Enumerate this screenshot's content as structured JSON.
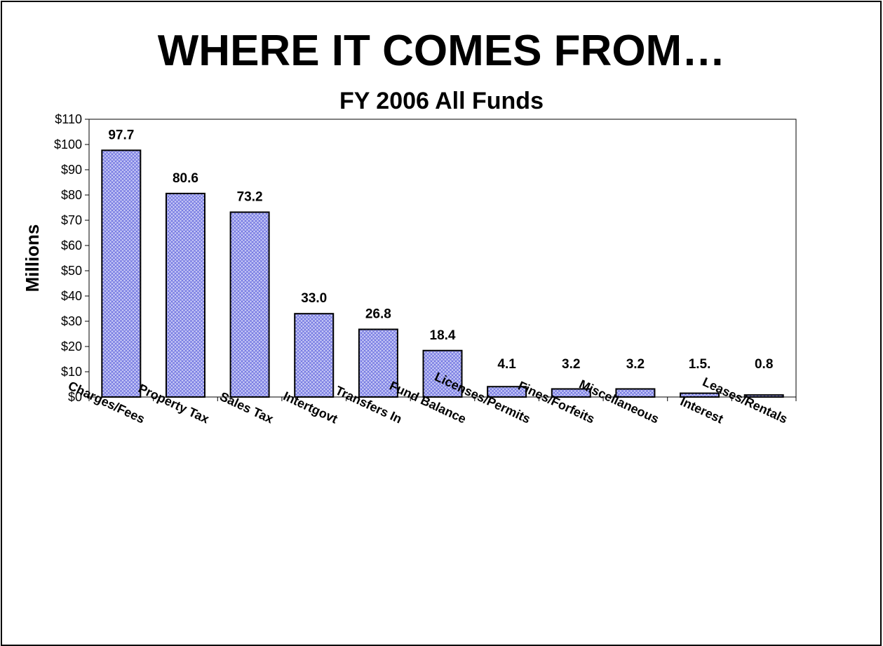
{
  "slide": {
    "title": "WHERE IT COMES FROM…",
    "subtitle": "FY 2006 All Funds"
  },
  "chart_data": {
    "type": "bar",
    "title": "",
    "xlabel": "",
    "ylabel": "Millions",
    "ylim": [
      0,
      110
    ],
    "y_ticks": [
      "$0",
      "$10",
      "$20",
      "$30",
      "$40",
      "$50",
      "$60",
      "$70",
      "$80",
      "$90",
      "$100",
      "$110"
    ],
    "categories": [
      "Charges/Fees",
      "Property Tax",
      "Sales Tax",
      "Intertgovt",
      "Transfers In",
      "Fund Balance",
      "Licenses/Permits",
      "Fines/Forfeits",
      "Miscellaneous",
      "Interest",
      "Leases/Rentals"
    ],
    "values": [
      97.7,
      80.6,
      73.2,
      33.0,
      26.8,
      18.4,
      4.1,
      3.2,
      3.2,
      1.5,
      0.8
    ],
    "data_labels": [
      "97.7",
      "80.6",
      "73.2",
      "33.0",
      "26.8",
      "18.4",
      "4.1",
      "3.2",
      "3.2",
      "1.5.",
      "0.8"
    ],
    "grid": false,
    "legend": "none",
    "colors": {
      "bar_fill": "#c6c8f5",
      "bar_hatch": "#6a6ee0",
      "bar_edge": "#000000"
    }
  }
}
